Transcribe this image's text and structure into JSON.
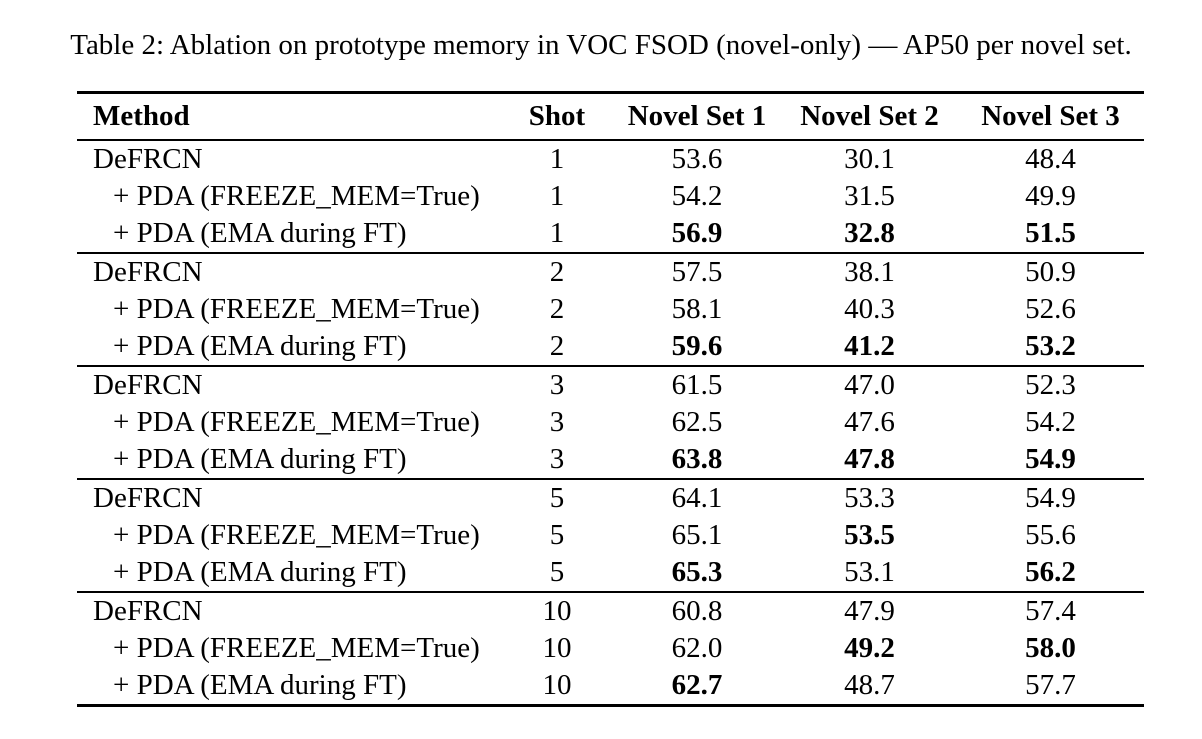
{
  "page": {
    "background_color": "#ffffff",
    "text_color": "#000000"
  },
  "caption": "Table 2: Ablation on prototype memory in VOC FSOD (novel-only) — AP50 per novel set.",
  "table": {
    "columns": [
      "Method",
      "Shot",
      "Novel Set 1",
      "Novel Set 2",
      "Novel Set 3"
    ],
    "groups": [
      {
        "shot": "1",
        "rows": [
          {
            "method": "DeFRCN",
            "indent": false,
            "shot": "1",
            "values": [
              {
                "text": "53.6",
                "bold": false
              },
              {
                "text": "30.1",
                "bold": false
              },
              {
                "text": "48.4",
                "bold": false
              }
            ]
          },
          {
            "method": "+ PDA (FREEZE_MEM=True)",
            "indent": true,
            "shot": "1",
            "values": [
              {
                "text": "54.2",
                "bold": false
              },
              {
                "text": "31.5",
                "bold": false
              },
              {
                "text": "49.9",
                "bold": false
              }
            ]
          },
          {
            "method": "+ PDA (EMA during FT)",
            "indent": true,
            "shot": "1",
            "values": [
              {
                "text": "56.9",
                "bold": true
              },
              {
                "text": "32.8",
                "bold": true
              },
              {
                "text": "51.5",
                "bold": true
              }
            ]
          }
        ]
      },
      {
        "shot": "2",
        "rows": [
          {
            "method": "DeFRCN",
            "indent": false,
            "shot": "2",
            "values": [
              {
                "text": "57.5",
                "bold": false
              },
              {
                "text": "38.1",
                "bold": false
              },
              {
                "text": "50.9",
                "bold": false
              }
            ]
          },
          {
            "method": "+ PDA (FREEZE_MEM=True)",
            "indent": true,
            "shot": "2",
            "values": [
              {
                "text": "58.1",
                "bold": false
              },
              {
                "text": "40.3",
                "bold": false
              },
              {
                "text": "52.6",
                "bold": false
              }
            ]
          },
          {
            "method": "+ PDA (EMA during FT)",
            "indent": true,
            "shot": "2",
            "values": [
              {
                "text": "59.6",
                "bold": true
              },
              {
                "text": "41.2",
                "bold": true
              },
              {
                "text": "53.2",
                "bold": true
              }
            ]
          }
        ]
      },
      {
        "shot": "3",
        "rows": [
          {
            "method": "DeFRCN",
            "indent": false,
            "shot": "3",
            "values": [
              {
                "text": "61.5",
                "bold": false
              },
              {
                "text": "47.0",
                "bold": false
              },
              {
                "text": "52.3",
                "bold": false
              }
            ]
          },
          {
            "method": "+ PDA (FREEZE_MEM=True)",
            "indent": true,
            "shot": "3",
            "values": [
              {
                "text": "62.5",
                "bold": false
              },
              {
                "text": "47.6",
                "bold": false
              },
              {
                "text": "54.2",
                "bold": false
              }
            ]
          },
          {
            "method": "+ PDA (EMA during FT)",
            "indent": true,
            "shot": "3",
            "values": [
              {
                "text": "63.8",
                "bold": true
              },
              {
                "text": "47.8",
                "bold": true
              },
              {
                "text": "54.9",
                "bold": true
              }
            ]
          }
        ]
      },
      {
        "shot": "5",
        "rows": [
          {
            "method": "DeFRCN",
            "indent": false,
            "shot": "5",
            "values": [
              {
                "text": "64.1",
                "bold": false
              },
              {
                "text": "53.3",
                "bold": false
              },
              {
                "text": "54.9",
                "bold": false
              }
            ]
          },
          {
            "method": "+ PDA (FREEZE_MEM=True)",
            "indent": true,
            "shot": "5",
            "values": [
              {
                "text": "65.1",
                "bold": false
              },
              {
                "text": "53.5",
                "bold": true
              },
              {
                "text": "55.6",
                "bold": false
              }
            ]
          },
          {
            "method": "+ PDA (EMA during FT)",
            "indent": true,
            "shot": "5",
            "values": [
              {
                "text": "65.3",
                "bold": true
              },
              {
                "text": "53.1",
                "bold": false
              },
              {
                "text": "56.2",
                "bold": true
              }
            ]
          }
        ]
      },
      {
        "shot": "10",
        "rows": [
          {
            "method": "DeFRCN",
            "indent": false,
            "shot": "10",
            "values": [
              {
                "text": "60.8",
                "bold": false
              },
              {
                "text": "47.9",
                "bold": false
              },
              {
                "text": "57.4",
                "bold": false
              }
            ]
          },
          {
            "method": "+ PDA (FREEZE_MEM=True)",
            "indent": true,
            "shot": "10",
            "values": [
              {
                "text": "62.0",
                "bold": false
              },
              {
                "text": "49.2",
                "bold": true
              },
              {
                "text": "58.0",
                "bold": true
              }
            ]
          },
          {
            "method": "+ PDA (EMA during FT)",
            "indent": true,
            "shot": "10",
            "values": [
              {
                "text": "62.7",
                "bold": true
              },
              {
                "text": "48.7",
                "bold": false
              },
              {
                "text": "57.7",
                "bold": false
              }
            ]
          }
        ]
      }
    ]
  }
}
